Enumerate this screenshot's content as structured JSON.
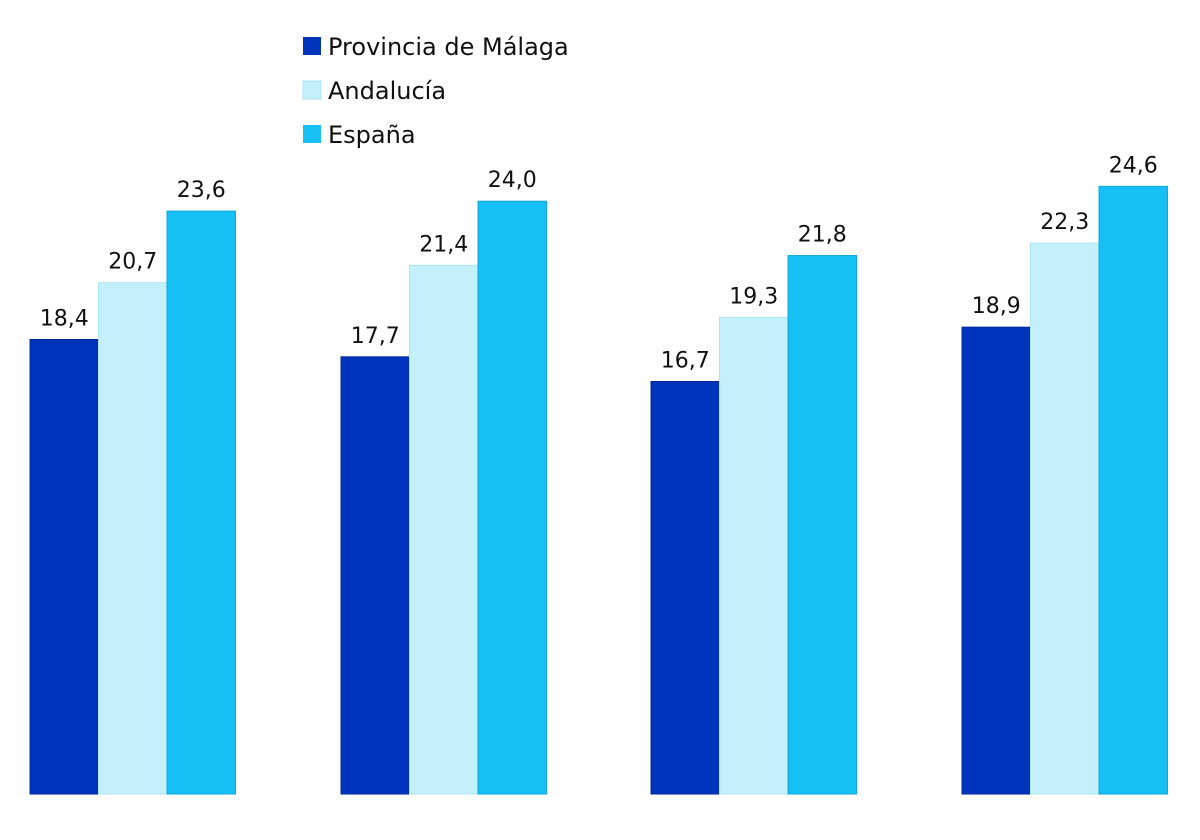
{
  "chart_data": {
    "type": "bar",
    "title": "",
    "xlabel": "",
    "ylabel": "",
    "categories": [
      "",
      "",
      "",
      ""
    ],
    "ylim": [
      0,
      32
    ],
    "grid": false,
    "legend_position": "top-center",
    "value_label_format": "decimal-comma",
    "series": [
      {
        "name": "Provincia de Málaga",
        "color": "#0033bb",
        "values": [
          18.4,
          17.7,
          16.7,
          18.9
        ],
        "labels": [
          "18,4",
          "17,7",
          "16,7",
          "18,9"
        ]
      },
      {
        "name": "Andalucía",
        "color": "#c4f0fb",
        "values": [
          20.7,
          21.4,
          19.3,
          22.3
        ],
        "labels": [
          "20,7",
          "21,4",
          "19,3",
          "22,3"
        ]
      },
      {
        "name": "España",
        "color": "#16c0f5",
        "values": [
          23.6,
          24.0,
          21.8,
          24.6
        ],
        "labels": [
          "23,6",
          "24,0",
          "21,8",
          "24,6"
        ]
      }
    ]
  }
}
